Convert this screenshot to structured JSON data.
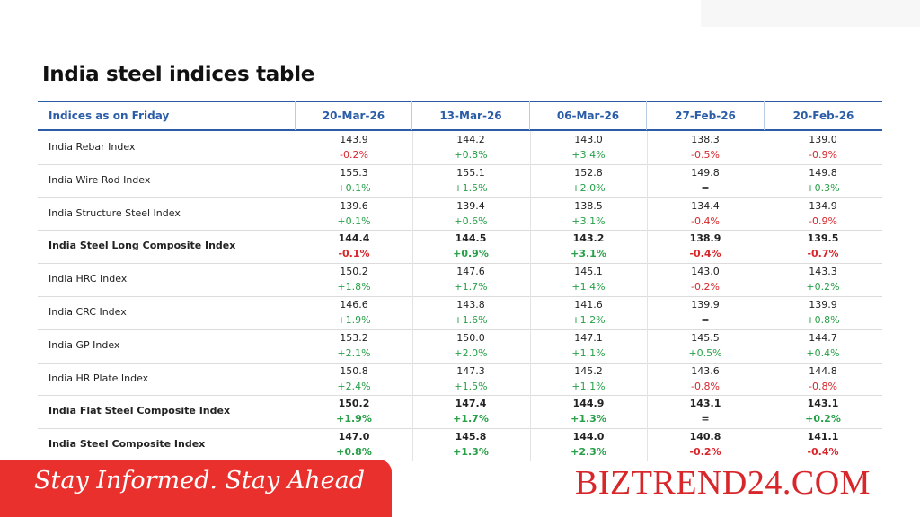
{
  "title": "India steel indices table",
  "table": {
    "header": [
      "Indices as on Friday",
      "20-Mar-26",
      "13-Mar-26",
      "06-Mar-26",
      "27-Feb-26",
      "20-Feb-26"
    ],
    "rows": [
      {
        "name": "India Rebar Index",
        "cells": [
          [
            "143.9",
            "-0.2%"
          ],
          [
            "144.2",
            "+0.8%"
          ],
          [
            "143.0",
            "+3.4%"
          ],
          [
            "138.3",
            "-0.5%"
          ],
          [
            "139.0",
            "-0.9%"
          ]
        ]
      },
      {
        "name": "India Wire Rod Index",
        "cells": [
          [
            "155.3",
            "+0.1%"
          ],
          [
            "155.1",
            "+1.5%"
          ],
          [
            "152.8",
            "+2.0%"
          ],
          [
            "149.8",
            "="
          ],
          [
            "149.8",
            "+0.3%"
          ]
        ]
      },
      {
        "name": "India Structure Steel Index",
        "cells": [
          [
            "139.6",
            "+0.1%"
          ],
          [
            "139.4",
            "+0.6%"
          ],
          [
            "138.5",
            "+3.1%"
          ],
          [
            "134.4",
            "-0.4%"
          ],
          [
            "134.9",
            "-0.9%"
          ]
        ]
      },
      {
        "name": "India Steel Long Composite Index",
        "emphasis": true,
        "cells": [
          [
            "144.4",
            "-0.1%"
          ],
          [
            "144.5",
            "+0.9%"
          ],
          [
            "143.2",
            "+3.1%"
          ],
          [
            "138.9",
            "-0.4%"
          ],
          [
            "139.5",
            "-0.7%"
          ]
        ]
      },
      {
        "name": "India HRC Index",
        "cells": [
          [
            "150.2",
            "+1.8%"
          ],
          [
            "147.6",
            "+1.7%"
          ],
          [
            "145.1",
            "+1.4%"
          ],
          [
            "143.0",
            "-0.2%"
          ],
          [
            "143.3",
            "+0.2%"
          ]
        ]
      },
      {
        "name": "India CRC Index",
        "cells": [
          [
            "146.6",
            "+1.9%"
          ],
          [
            "143.8",
            "+1.6%"
          ],
          [
            "141.6",
            "+1.2%"
          ],
          [
            "139.9",
            "="
          ],
          [
            "139.9",
            "+0.8%"
          ]
        ]
      },
      {
        "name": "India GP Index",
        "cells": [
          [
            "153.2",
            "+2.1%"
          ],
          [
            "150.0",
            "+2.0%"
          ],
          [
            "147.1",
            "+1.1%"
          ],
          [
            "145.5",
            "+0.5%"
          ],
          [
            "144.7",
            "+0.4%"
          ]
        ]
      },
      {
        "name": "India HR Plate Index",
        "cells": [
          [
            "150.8",
            "+2.4%"
          ],
          [
            "147.3",
            "+1.5%"
          ],
          [
            "145.2",
            "+1.1%"
          ],
          [
            "143.6",
            "-0.8%"
          ],
          [
            "144.8",
            "-0.8%"
          ]
        ]
      },
      {
        "name": "India Flat Steel Composite Index",
        "emphasis": true,
        "cells": [
          [
            "150.2",
            "+1.9%"
          ],
          [
            "147.4",
            "+1.7%"
          ],
          [
            "144.9",
            "+1.3%"
          ],
          [
            "143.1",
            "="
          ],
          [
            "143.1",
            "+0.2%"
          ]
        ]
      },
      {
        "name": "India Steel Composite Index",
        "emphasis": true,
        "cells": [
          [
            "147.0",
            "+0.8%"
          ],
          [
            "145.8",
            "+1.3%"
          ],
          [
            "144.0",
            "+2.3%"
          ],
          [
            "140.8",
            "-0.2%"
          ],
          [
            "141.1",
            "-0.4%"
          ]
        ]
      }
    ]
  },
  "footer": {
    "tagline": "Stay Informed. Stay Ahead",
    "brand": "BIZTREND24.COM"
  }
}
